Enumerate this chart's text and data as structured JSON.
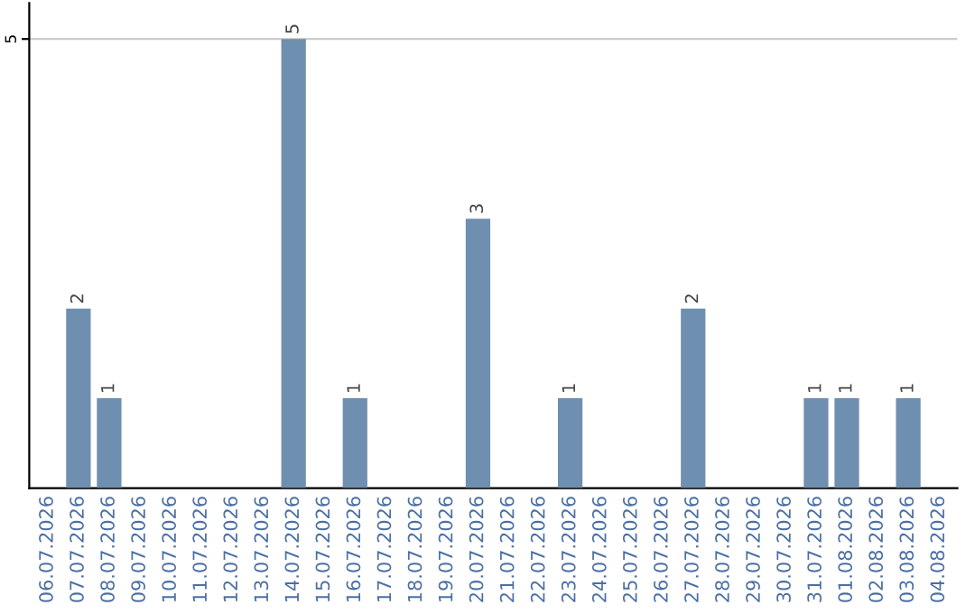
{
  "chart_data": {
    "type": "bar",
    "categories": [
      "06.07.2026",
      "07.07.2026",
      "08.07.2026",
      "09.07.2026",
      "10.07.2026",
      "11.07.2026",
      "12.07.2026",
      "13.07.2026",
      "14.07.2026",
      "15.07.2026",
      "16.07.2026",
      "17.07.2026",
      "18.07.2026",
      "19.07.2026",
      "20.07.2026",
      "21.07.2026",
      "22.07.2026",
      "23.07.2026",
      "24.07.2026",
      "25.07.2026",
      "26.07.2026",
      "27.07.2026",
      "28.07.2026",
      "29.07.2026",
      "30.07.2026",
      "31.07.2026",
      "01.08.2026",
      "02.08.2026",
      "03.08.2026",
      "04.08.2026"
    ],
    "values": [
      0,
      2,
      1,
      0,
      0,
      0,
      0,
      0,
      5,
      0,
      1,
      0,
      0,
      0,
      3,
      0,
      0,
      1,
      0,
      0,
      0,
      2,
      0,
      0,
      0,
      1,
      1,
      0,
      1,
      0
    ],
    "value_labels": [
      null,
      "2",
      "1",
      null,
      null,
      null,
      null,
      null,
      "5",
      null,
      "1",
      null,
      null,
      null,
      "3",
      null,
      null,
      "1",
      null,
      null,
      null,
      "2",
      null,
      null,
      null,
      "1",
      "1",
      null,
      "1",
      null
    ],
    "color": "#6f8fb0",
    "ylim": [
      0,
      5.4
    ],
    "yticks": [
      5
    ],
    "grid": "y"
  }
}
